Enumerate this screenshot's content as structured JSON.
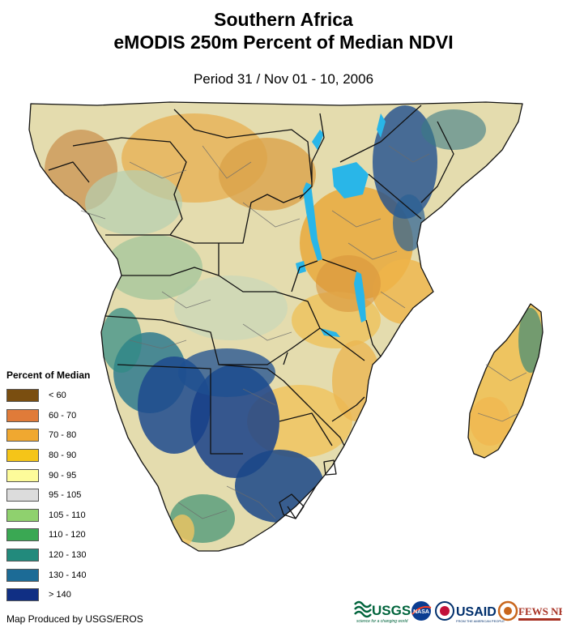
{
  "map": {
    "title_line1": "Southern Africa",
    "title_line2": "eMODIS 250m Percent of Median NDVI",
    "period": "Period 31 / Nov 01 - 10, 2006",
    "credit": "Map Produced by USGS/EROS"
  },
  "legend": {
    "title": "Percent of Median",
    "items": [
      {
        "label": "< 60",
        "color": "#7a4e10"
      },
      {
        "label": "60 - 70",
        "color": "#e07b39"
      },
      {
        "label": "70 - 80",
        "color": "#f0a830"
      },
      {
        "label": "80 - 90",
        "color": "#f5c518"
      },
      {
        "label": "90 - 95",
        "color": "#fdfb9a"
      },
      {
        "label": "95 - 105",
        "color": "#dcdcdc"
      },
      {
        "label": "105 - 110",
        "color": "#8fd16e"
      },
      {
        "label": "110 - 120",
        "color": "#3aa853"
      },
      {
        "label": "120 - 130",
        "color": "#228a7c"
      },
      {
        "label": "130 - 140",
        "color": "#1c6b96"
      },
      {
        "label": "> 140",
        "color": "#102f84"
      }
    ]
  },
  "logos": {
    "usgs": "USGS",
    "usgs_tagline": "science for a changing world",
    "nasa": "NASA",
    "usaid": "USAID",
    "usaid_tagline": "FROM THE AMERICAN PEOPLE",
    "fewsnet": "FEWS NET"
  },
  "colors": {
    "water": "#29b6e8",
    "border": "#111111",
    "dominant_land": "#e3dcb0"
  }
}
